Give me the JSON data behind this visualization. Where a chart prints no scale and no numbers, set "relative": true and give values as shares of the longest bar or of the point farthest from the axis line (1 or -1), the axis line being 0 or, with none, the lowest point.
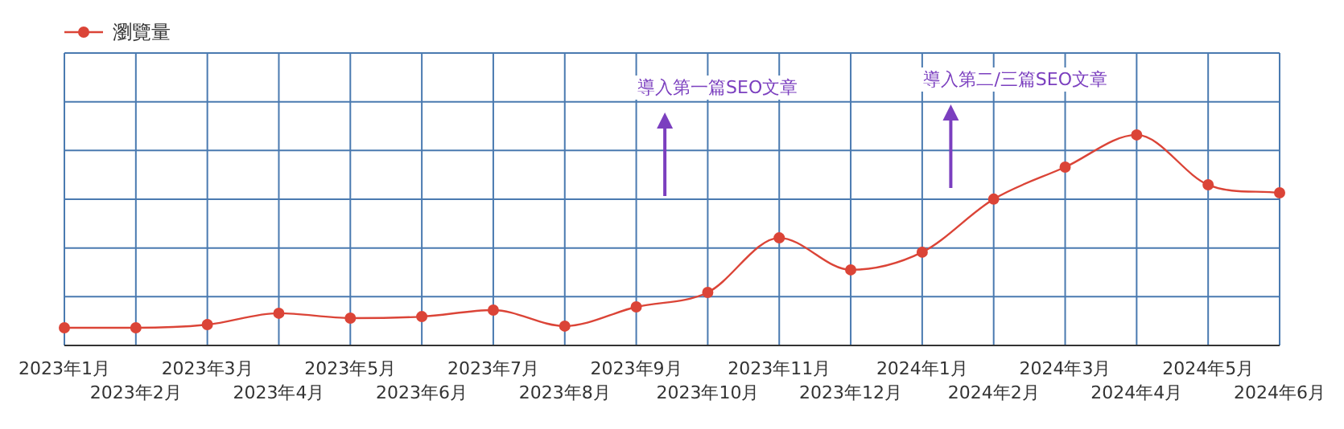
{
  "chart_data": {
    "type": "line",
    "relative": true,
    "categories": [
      "2023年1月",
      "2023年2月",
      "2023年3月",
      "2023年4月",
      "2023年5月",
      "2023年6月",
      "2023年7月",
      "2023年8月",
      "2023年9月",
      "2023年10月",
      "2023年11月",
      "2023年12月",
      "2024年1月",
      "2024年2月",
      "2024年3月",
      "2024年4月",
      "2024年5月",
      "2024年6月"
    ],
    "series": [
      {
        "name": "瀏覽量",
        "color": "#db4437",
        "values": [
          0.084,
          0.084,
          0.099,
          0.153,
          0.13,
          0.137,
          0.168,
          0.092,
          0.183,
          0.252,
          0.511,
          0.359,
          0.443,
          0.695,
          0.847,
          1,
          0.763,
          0.725
        ]
      }
    ],
    "annotations": [
      "導入第一篇SEO文章",
      "導入第二/三篇SEO文章"
    ],
    "grid": true,
    "legend": "top left",
    "marker": "circle",
    "line_style": "solid"
  }
}
